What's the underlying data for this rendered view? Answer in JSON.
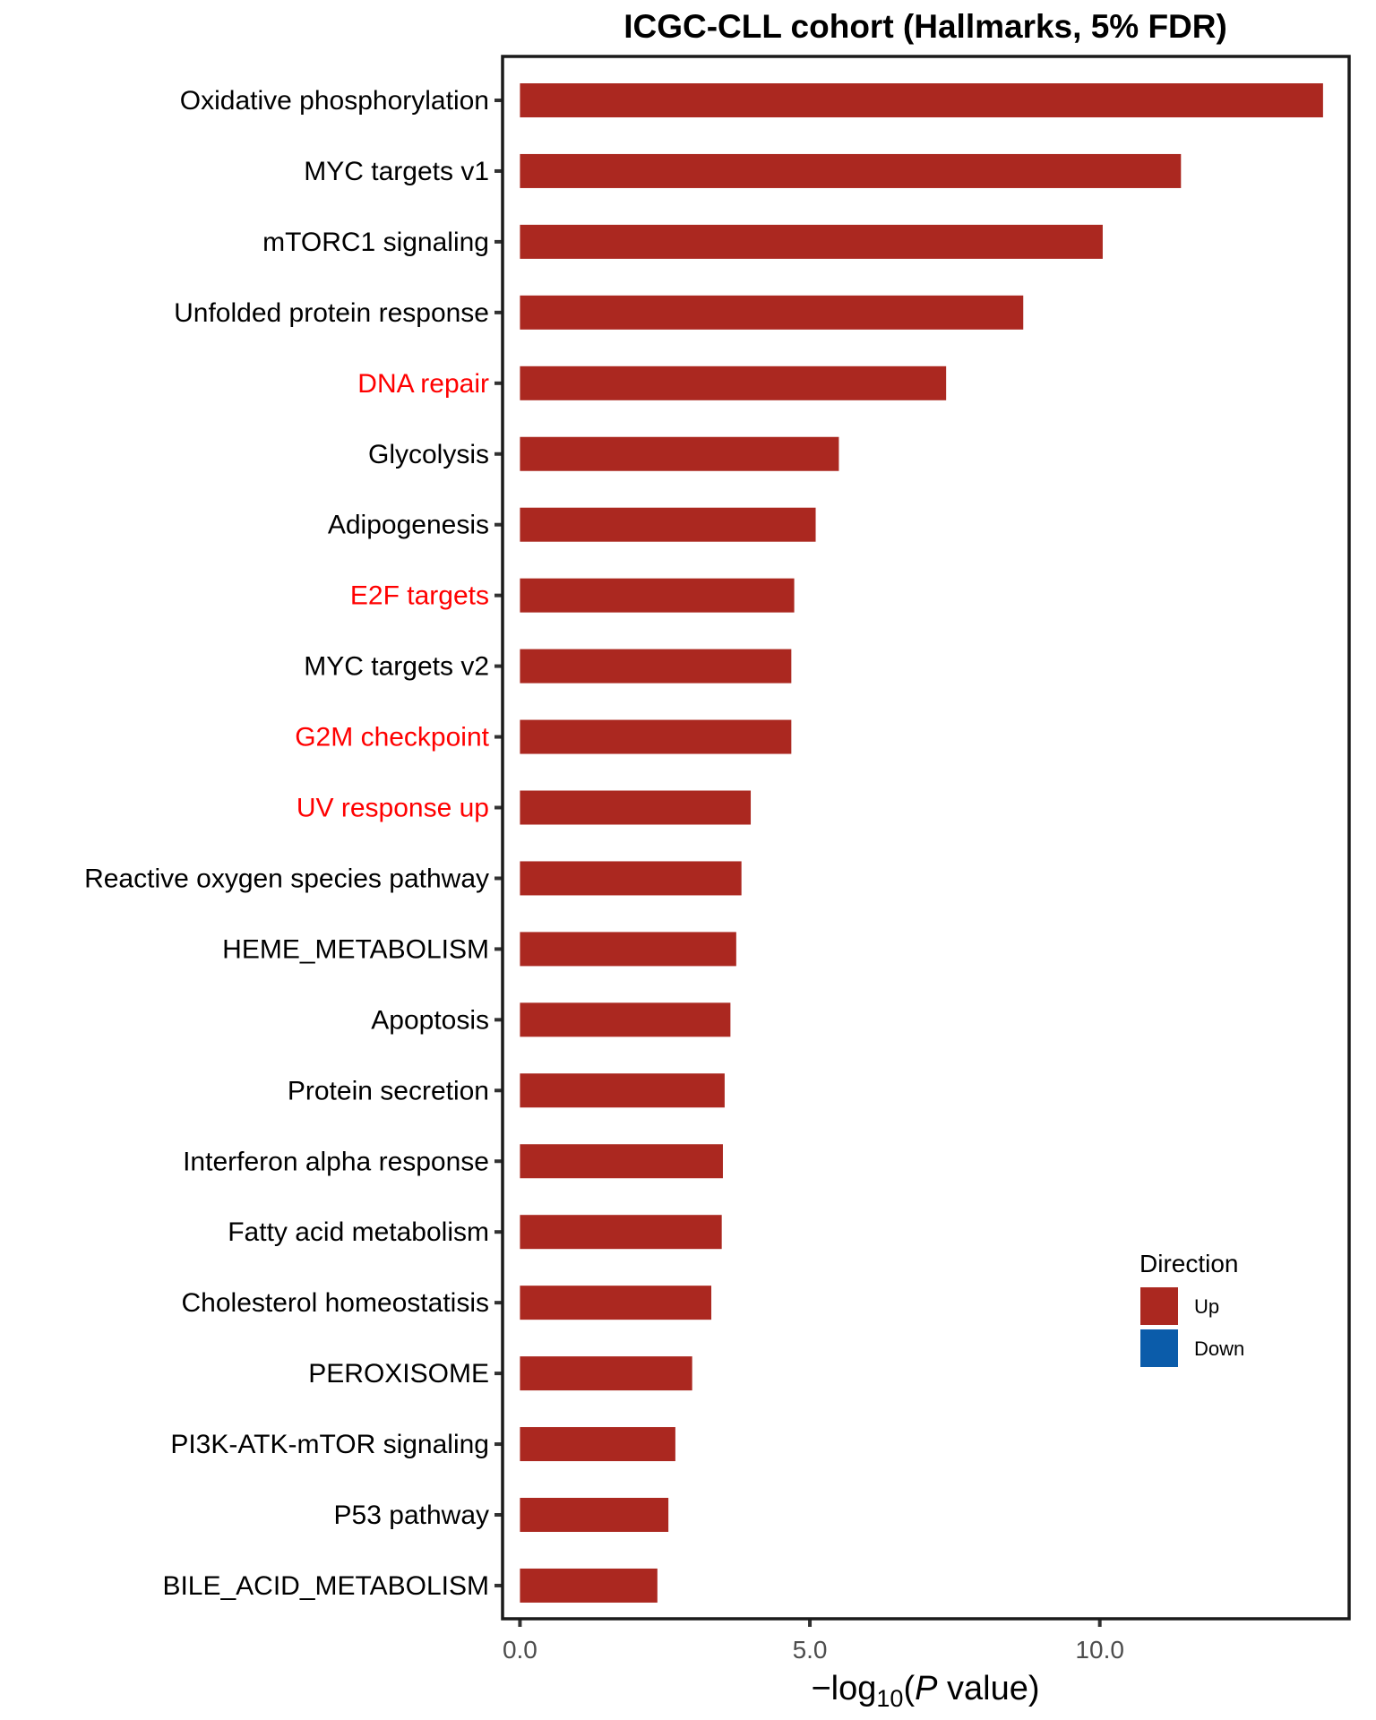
{
  "chart_data": {
    "type": "bar",
    "orientation": "horizontal",
    "title": "ICGC-CLL cohort (Hallmarks, 5% FDR)",
    "xlabel": "−log10(P value)",
    "xlabel_parts": {
      "prefix": "−",
      "log": "log",
      "sub": "10",
      "open": "(",
      "italic": "P",
      "rest": " value)"
    },
    "xlim": [
      -0.3,
      14.3
    ],
    "xticks": [
      0,
      5,
      10
    ],
    "xtick_labels": [
      "0.0",
      "5.0",
      "10.0"
    ],
    "grid": false,
    "categories": [
      "Oxidative phosphorylation",
      "MYC targets v1",
      "mTORC1 signaling",
      "Unfolded protein response",
      "DNA repair",
      "Glycolysis",
      "Adipogenesis",
      "E2F targets",
      "MYC targets v2",
      "G2M checkpoint",
      "UV response up",
      "Reactive oxygen species pathway",
      "HEME_METABOLISM",
      "Apoptosis",
      "Protein secretion",
      "Interferon alpha response",
      "Fatty acid metabolism",
      "Cholesterol homeostatisis",
      "PEROXISOME",
      "PI3K-ATK-mTOR signaling",
      "P53 pathway",
      "BILE_ACID_METABOLISM"
    ],
    "values": [
      13.85,
      11.4,
      10.05,
      8.68,
      7.35,
      5.5,
      5.1,
      4.73,
      4.68,
      4.68,
      3.98,
      3.82,
      3.73,
      3.63,
      3.53,
      3.5,
      3.48,
      3.3,
      2.97,
      2.68,
      2.56,
      2.37
    ],
    "directions": [
      "Up",
      "Up",
      "Up",
      "Up",
      "Up",
      "Up",
      "Up",
      "Up",
      "Up",
      "Up",
      "Up",
      "Up",
      "Up",
      "Up",
      "Up",
      "Up",
      "Up",
      "Up",
      "Up",
      "Up",
      "Up",
      "Up"
    ],
    "highlighted_labels": [
      "DNA repair",
      "E2F targets",
      "G2M checkpoint",
      "UV response up"
    ],
    "legend": {
      "title": "Direction",
      "position": "bottom-right inside",
      "entries": [
        {
          "label": "Up",
          "color": "#AB2820"
        },
        {
          "label": "Down",
          "color": "#0B5CAA"
        }
      ]
    },
    "colors": {
      "up": "#AB2820",
      "down": "#0B5CAA",
      "highlight_label": "#FF0000",
      "label": "#000000"
    }
  }
}
